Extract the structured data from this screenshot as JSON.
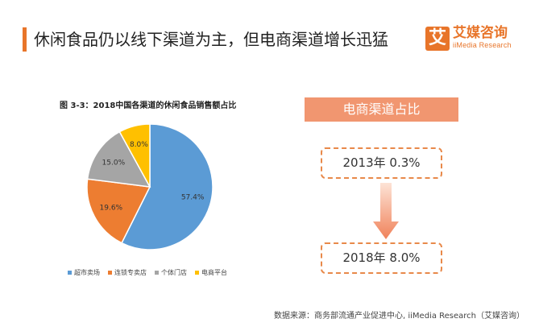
{
  "header": {
    "title": "休闲食品仍以线下渠道为主，但电商渠道增长迅猛",
    "brand_mark": "艾",
    "brand_name": "艾媒咨询",
    "brand_sub": "iiMedia Research"
  },
  "colors": {
    "accent": "#e8752a",
    "highlight": "#f19670"
  },
  "chart_data": {
    "type": "pie",
    "title": "图 3-3：2018中国各渠道的休闲食品销售额占比",
    "categories": [
      "超市卖场",
      "连锁专卖店",
      "个体门店",
      "电商平台"
    ],
    "values": [
      57.4,
      19.6,
      15.0,
      8.0
    ],
    "labels": [
      "57.4%",
      "19.6%",
      "15.0%",
      "8.0%"
    ],
    "colors": [
      "#5b9bd5",
      "#ed7d31",
      "#a5a5a5",
      "#ffc000"
    ],
    "legend_position": "bottom"
  },
  "ecommerce_share": {
    "title": "电商渠道占比",
    "items": [
      {
        "text": "2013年  0.3%"
      },
      {
        "text": "2018年  8.0%"
      }
    ]
  },
  "footer": {
    "source": "数据来源：商务部流通产业促进中心, iiMedia Research（艾媒咨询）"
  }
}
